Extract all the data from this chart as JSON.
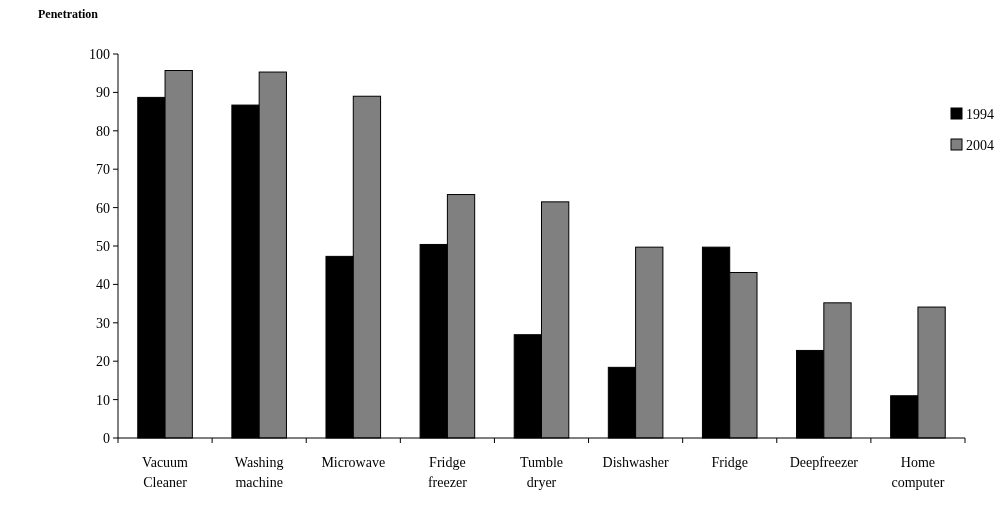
{
  "chart_data": {
    "type": "bar",
    "ylabel": "Penetration",
    "categories": [
      "Vacuum\nCleaner",
      "Washing\nmachine",
      "Microwave",
      "Fridge\nfreezer",
      "Tumble\ndryer",
      "Dishwasher",
      "Fridge",
      "Deepfreezer",
      "Home\ncomputer"
    ],
    "series": [
      {
        "name": "1994",
        "color": "#000000",
        "values": [
          88.7,
          86.7,
          47.3,
          50.4,
          26.9,
          18.4,
          49.7,
          22.8,
          11.0
        ]
      },
      {
        "name": "2004",
        "color": "#808080",
        "values": [
          95.7,
          95.3,
          89.0,
          63.4,
          61.5,
          49.7,
          43.1,
          35.2,
          34.1
        ]
      }
    ],
    "ylim": [
      0,
      100
    ],
    "yticks": [
      0,
      10,
      20,
      30,
      40,
      50,
      60,
      70,
      80,
      90,
      100
    ],
    "grid": false,
    "legend": "right"
  }
}
